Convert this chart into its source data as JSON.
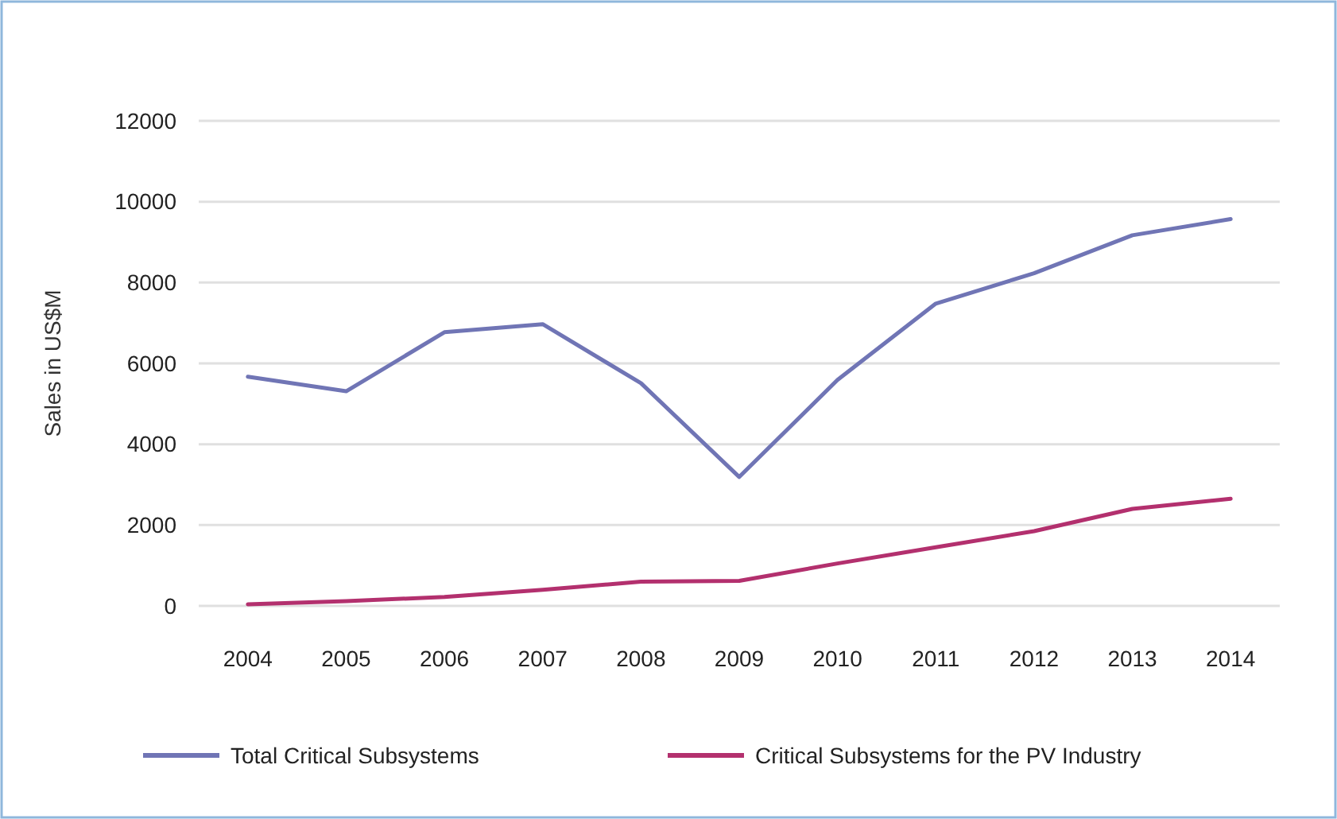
{
  "chart_data": {
    "type": "line",
    "ylabel": "Sales in US$M",
    "categories": [
      "2004",
      "2005",
      "2006",
      "2007",
      "2008",
      "2009",
      "2010",
      "2011",
      "2012",
      "2013",
      "2014"
    ],
    "series": [
      {
        "name": "Total Critical Subsystems",
        "color": "#7075b5",
        "values": [
          5670,
          5310,
          6770,
          6970,
          5510,
          3190,
          5590,
          7480,
          8230,
          9170,
          9570
        ]
      },
      {
        "name": "Critical Subsystems for the PV Industry",
        "color": "#b3306e",
        "values": [
          40,
          120,
          220,
          400,
          600,
          620,
          1050,
          1450,
          1850,
          2400,
          2650
        ]
      }
    ],
    "ylim": [
      0,
      12000
    ],
    "yticks": [
      0,
      2000,
      4000,
      6000,
      8000,
      10000,
      12000
    ],
    "grid": "y",
    "legend": "bottom",
    "marker": "none",
    "line_style": "solid"
  }
}
